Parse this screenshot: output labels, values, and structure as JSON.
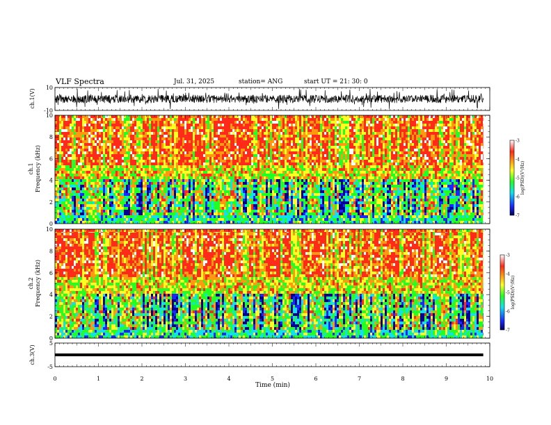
{
  "header": {
    "title": "VLF Spectra",
    "date": "Jul. 31, 2025",
    "station": "station= ANG",
    "start": "start UT =  21: 30: 0"
  },
  "colors": {
    "red": "#ff2a1a",
    "orange": "#ff9a10",
    "yellow": "#ffff22",
    "green": "#22ff22",
    "cyan": "#10e0f0",
    "blue": "#1a28ff",
    "navy": "#000090",
    "white": "#ffffff"
  },
  "chart_data": [
    {
      "type": "line",
      "ylabel": "ch.1(V)",
      "ylim": [
        -10,
        10
      ],
      "y_ticks": [
        "10",
        "-10"
      ],
      "xlim": [
        0,
        10
      ],
      "description_values": {
        "baseline_v": 0,
        "typical_amplitude_v": 4
      }
    },
    {
      "type": "heatmap",
      "ylabel": "ch.1\nFrequency (kHz)",
      "ylim": [
        0,
        10
      ],
      "y_ticks": [
        "0",
        "2",
        "4",
        "6",
        "8",
        "10"
      ],
      "xlim": [
        0,
        10
      ],
      "colorbar": {
        "label": "log(PSD)(V²/Hz)",
        "range": [
          -7,
          -3
        ],
        "ticks": [
          "-3",
          "-4",
          "-5",
          "-6",
          "-7"
        ]
      }
    },
    {
      "type": "heatmap",
      "ylabel": "ch.2\nFrequency (kHz)",
      "ylim": [
        0,
        10
      ],
      "y_ticks": [
        "0",
        "2",
        "4",
        "6",
        "8",
        "10"
      ],
      "xlim": [
        0,
        10
      ],
      "colorbar": {
        "label": "log(PSD)(V²/Hz)",
        "range": [
          -7,
          -3
        ],
        "ticks": [
          "-3",
          "-4",
          "-5",
          "-6",
          "-7"
        ]
      }
    },
    {
      "type": "line",
      "ylabel": "ch.3(V)",
      "ylim": [
        -5,
        5
      ],
      "y_ticks": [
        "5",
        "-5"
      ],
      "xlim": [
        0,
        10
      ],
      "values": {
        "constant_v": 0
      }
    }
  ],
  "xaxis": {
    "label": "Time (min)",
    "ticks": [
      "0",
      "1",
      "2",
      "3",
      "4",
      "5",
      "6",
      "7",
      "8",
      "9",
      "10"
    ],
    "xlim": [
      0,
      10
    ],
    "data_end_min": 9.85
  },
  "labels": {
    "ch1_v": "ch.1(V)",
    "ch1_freq_line1": "ch.1",
    "ch1_freq_line2": "Frequency (kHz)",
    "ch2_freq_line1": "ch.2",
    "ch2_freq_line2": "Frequency (kHz)",
    "ch3_v": "ch.3(V)",
    "cbar_label": "log(PSD)(V²/Hz)"
  }
}
